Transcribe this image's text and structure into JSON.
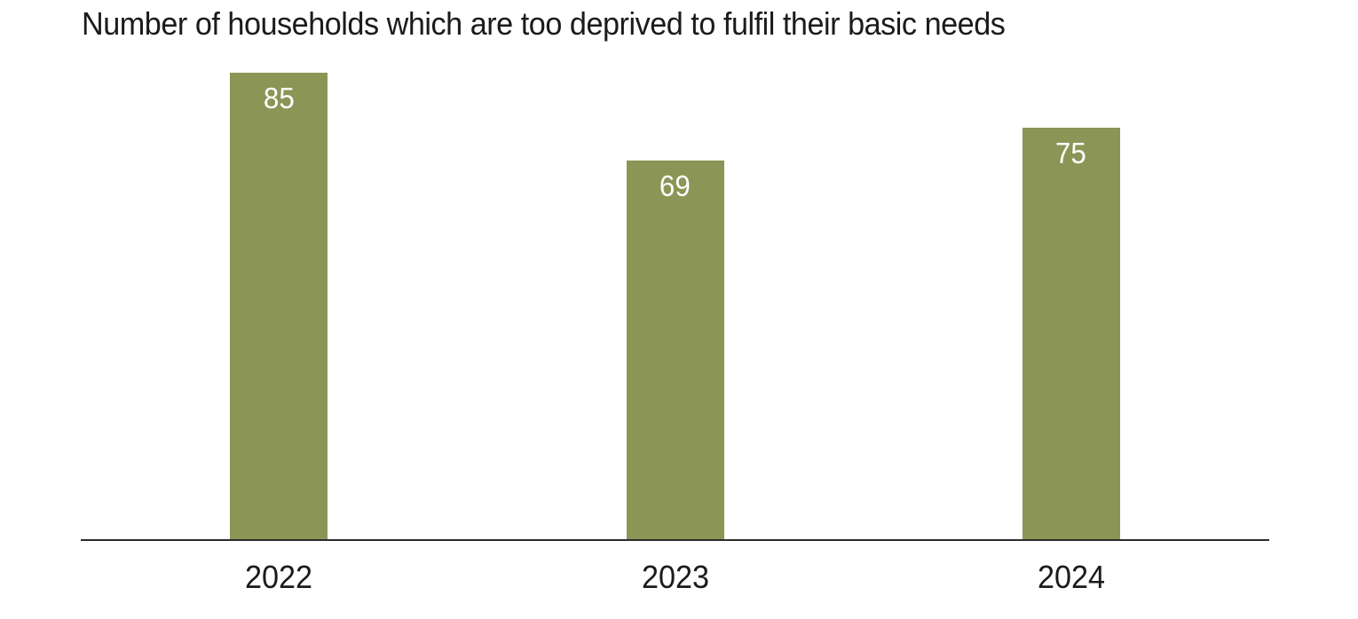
{
  "chart_data": {
    "type": "bar",
    "title": "Number of households which are too deprived to fulfil their basic needs",
    "categories": [
      "2022",
      "2023",
      "2024"
    ],
    "values": [
      85,
      69,
      75
    ],
    "xlabel": "",
    "ylabel": "",
    "ylim": [
      0,
      85
    ],
    "grid": false,
    "legend": false,
    "value_labels_shown": true,
    "value_label_position": "inside-top",
    "colors": {
      "bar": "#8a9556",
      "value_label": "#ffffff",
      "axis_line": "#2b2b2b",
      "text": "#1b1b1b",
      "background": "#ffffff"
    }
  }
}
